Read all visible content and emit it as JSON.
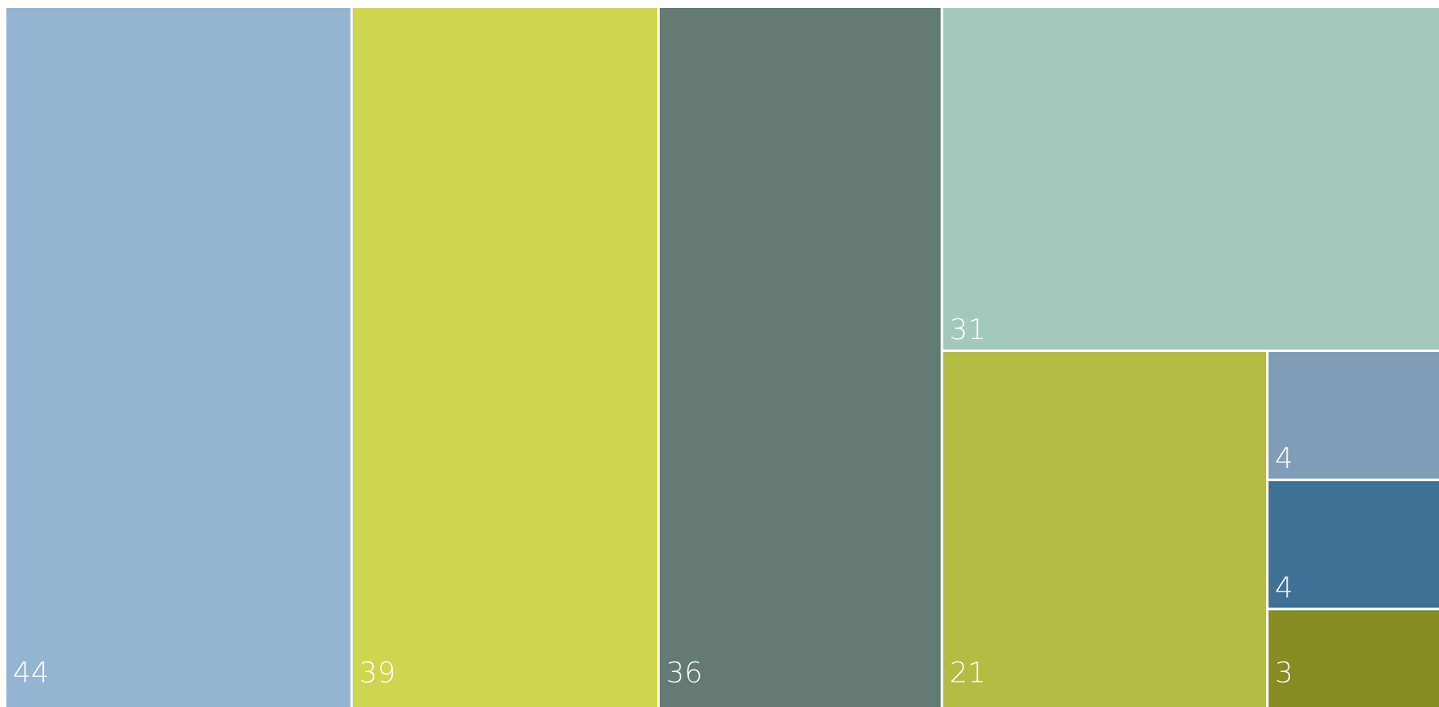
{
  "chart_data": {
    "type": "treemap",
    "title": "",
    "values": [
      44,
      39,
      36,
      31,
      21,
      4,
      4,
      3
    ],
    "labels": [
      "44",
      "39",
      "36",
      "31",
      "21",
      "4",
      "4",
      "3"
    ],
    "colors": [
      "#93b5d2",
      "#ced64f",
      "#637b73",
      "#a3c9bd",
      "#b5bc43",
      "#7f9db7",
      "#3f7095",
      "#868c21"
    ]
  }
}
